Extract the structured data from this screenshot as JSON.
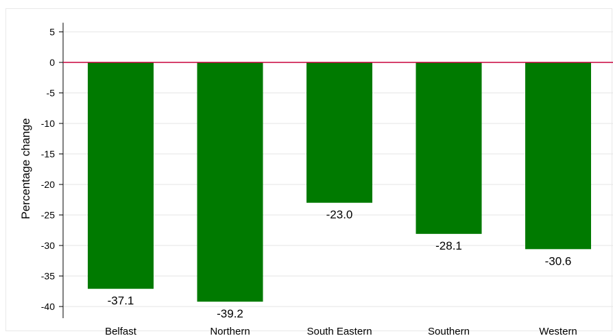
{
  "chart_data": {
    "type": "bar",
    "categories": [
      "Belfast",
      "Northern",
      "South Eastern",
      "Southern",
      "Western"
    ],
    "values": [
      -37.1,
      -39.2,
      -23.0,
      -28.1,
      -30.6
    ],
    "data_labels": [
      "-37.1",
      "-39.2",
      "-23.0",
      "-28.1",
      "-30.6"
    ],
    "ylabel": "Percentage change",
    "ylim": [
      -41,
      6.5
    ],
    "yticks": [
      5,
      0,
      -5,
      -10,
      -15,
      -20,
      -25,
      -30,
      -35,
      -40
    ],
    "grid": true,
    "colors": {
      "bar": "#007a00",
      "zero_line": "#c8003c",
      "grid": "#e6e6e6",
      "frame": "#e8e8e8"
    }
  }
}
